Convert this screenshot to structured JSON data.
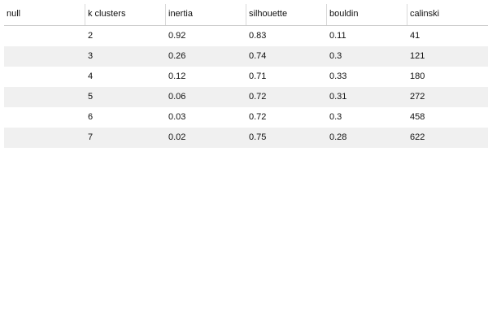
{
  "table": {
    "columns": [
      "null",
      "k clusters",
      "inertia",
      "silhouette",
      "bouldin",
      "calinski"
    ],
    "rows": [
      [
        "",
        "2",
        "0.92",
        "0.83",
        "0.11",
        "41"
      ],
      [
        "",
        "3",
        "0.26",
        "0.74",
        "0.3",
        "121"
      ],
      [
        "",
        "4",
        "0.12",
        "0.71",
        "0.33",
        "180"
      ],
      [
        "",
        "5",
        "0.06",
        "0.72",
        "0.31",
        "272"
      ],
      [
        "",
        "6",
        "0.03",
        "0.72",
        "0.3",
        "458"
      ],
      [
        "",
        "7",
        "0.02",
        "0.75",
        "0.28",
        "622"
      ]
    ]
  },
  "colors": {
    "row_stripe": "#f0f0f0",
    "header_border": "#c9c9c9",
    "column_divider": "#d9d9d9"
  }
}
